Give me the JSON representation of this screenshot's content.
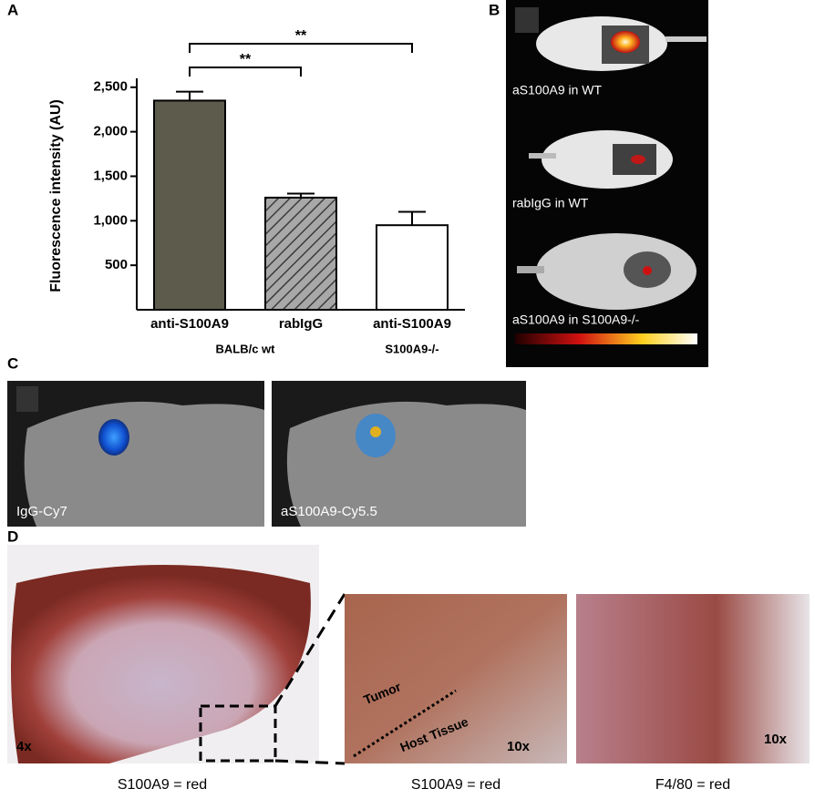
{
  "panel_labels": [
    "A",
    "B",
    "C",
    "D"
  ],
  "chart_data": {
    "type": "bar",
    "y_label": "Fluorescence intensity (AU)",
    "categories": [
      "anti-S100A9",
      "rabIgG",
      "anti-S100A9"
    ],
    "group_labels": [
      "BALB/c wt",
      "S100A9-/-"
    ],
    "values": [
      2350,
      1260,
      950
    ],
    "errors": [
      100,
      45,
      150
    ],
    "colors": [
      "#5c5b4c",
      "#9a9a9a",
      "#ffffff"
    ],
    "hatched": [
      false,
      true,
      false
    ],
    "significance": [
      "**",
      "**"
    ],
    "ylim": [
      0,
      2600
    ],
    "yticks": [
      500,
      {
        "value": 1000,
        "label": "1,000"
      },
      {
        "value": 1500,
        "label": "1,500"
      },
      {
        "value": 2000,
        "label": "2,000"
      },
      {
        "value": 2500,
        "label": "2,500"
      }
    ]
  },
  "panel_b": {
    "labels": [
      "aS100A9 in WT",
      "rabIgG in WT",
      "aS100A9 in S100A9-/-"
    ]
  },
  "panel_c": {
    "labels": [
      "IgG-Cy7",
      "aS100A9-Cy5.5"
    ]
  },
  "panel_d": {
    "magnifications": [
      "4x",
      "10x",
      "10x"
    ],
    "annotations": [
      "Tumor",
      "Host Tissue"
    ],
    "captions": [
      "S100A9 = red",
      "S100A9 = red",
      "F4/80 = red"
    ]
  }
}
